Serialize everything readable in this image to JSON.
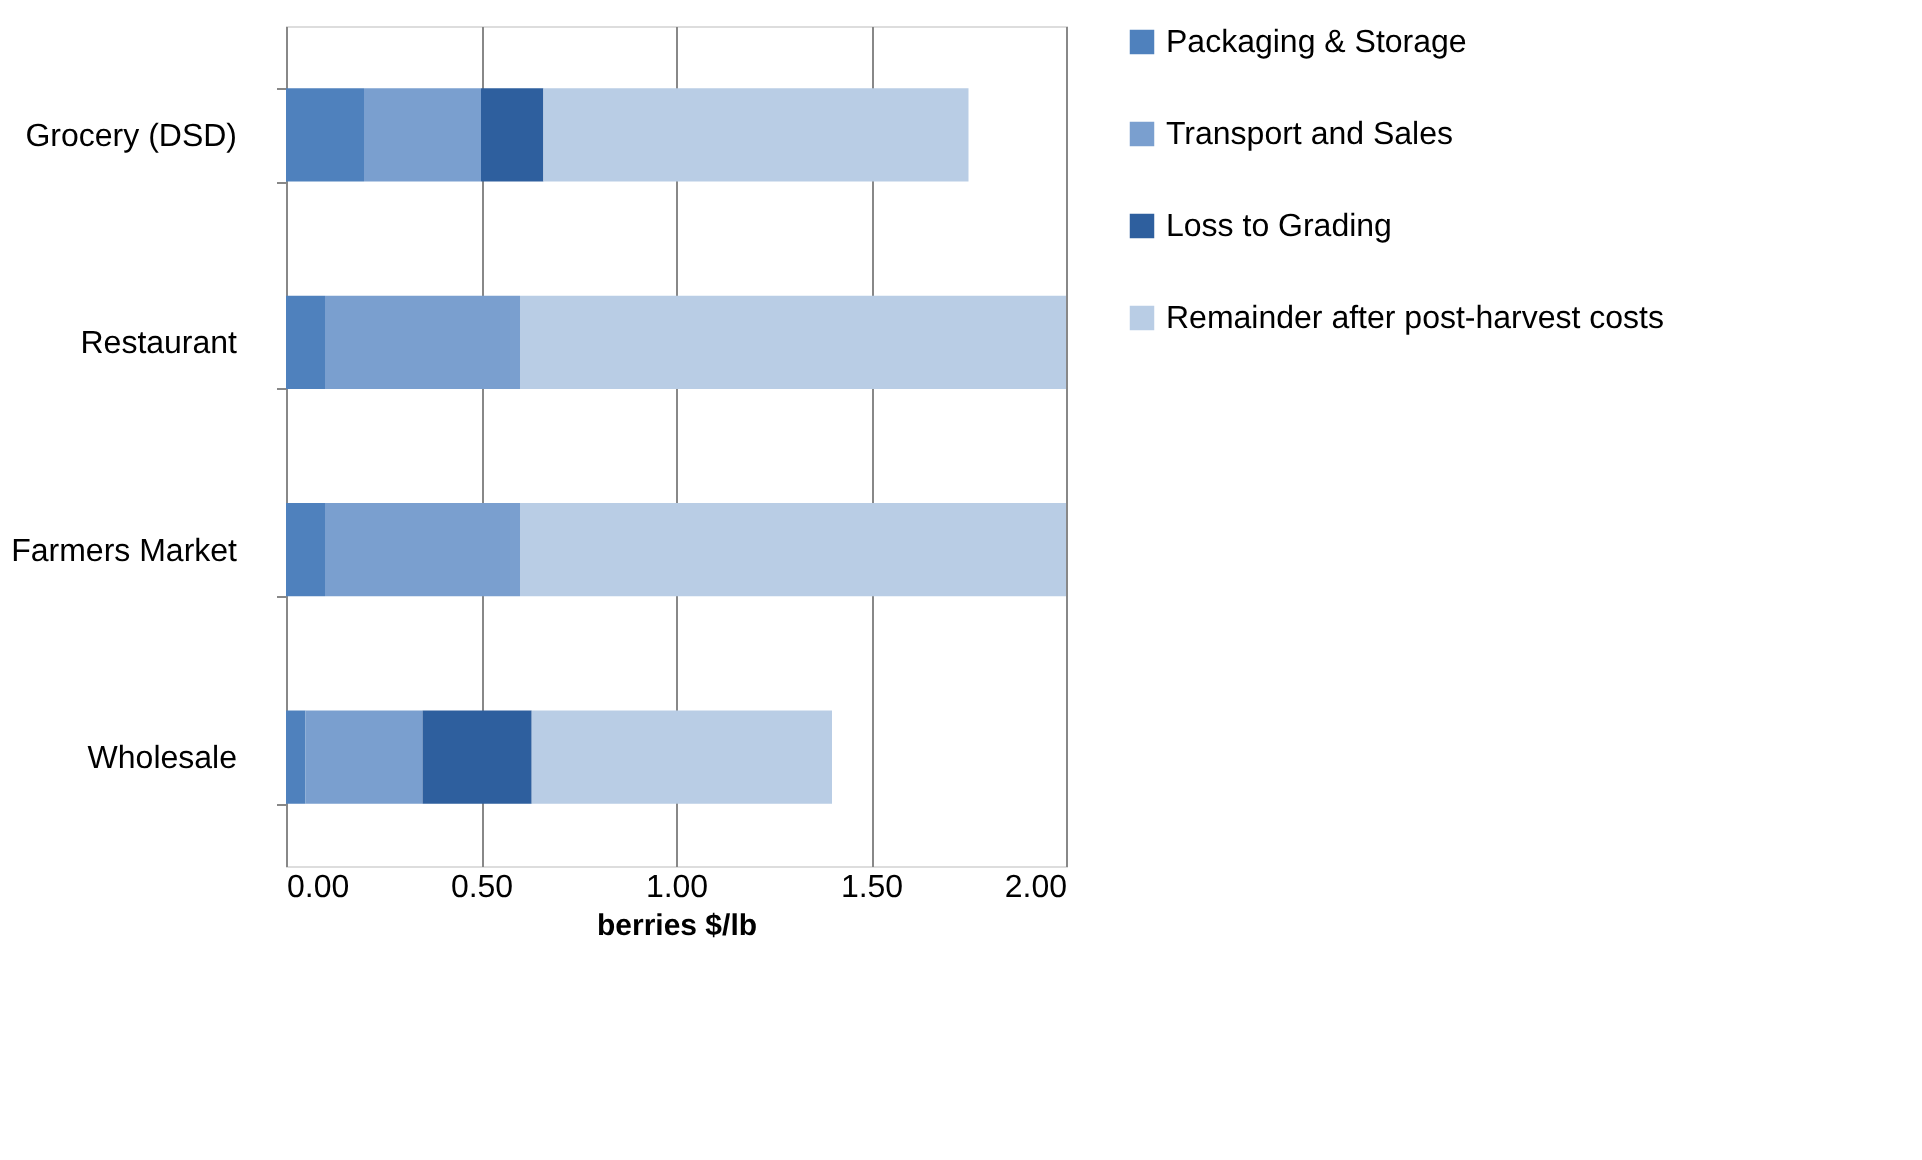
{
  "chart_data": {
    "type": "bar",
    "orientation": "horizontal",
    "stacked": true,
    "categories": [
      "Grocery (DSD)",
      "Restaurant",
      "Farmers Market",
      "Wholesale"
    ],
    "series": [
      {
        "name": "Packaging & Storage",
        "color": "#4f81bd",
        "values": [
          0.2,
          0.1,
          0.1,
          0.05
        ]
      },
      {
        "name": "Transport and Sales",
        "color": "#7a9fcf",
        "values": [
          0.3,
          0.5,
          0.5,
          0.3
        ]
      },
      {
        "name": "Loss to Grading",
        "color": "#2e5f9e",
        "values": [
          0.16,
          null,
          null,
          0.28
        ]
      },
      {
        "name": "Remainder after post-harvest costs",
        "color": "#b9cde5",
        "values": [
          1.09,
          1.4,
          1.4,
          0.77
        ]
      }
    ],
    "xlabel": "berries $/lb",
    "xlim": [
      0,
      2
    ],
    "xticks": [
      {
        "value": 0,
        "label": "0.00"
      },
      {
        "value": 0.5,
        "label": "0.50"
      },
      {
        "value": 1,
        "label": "1.00"
      },
      {
        "value": 1.5,
        "label": "1.50"
      },
      {
        "value": 2,
        "label": "2.00"
      }
    ],
    "grid": "x",
    "legend": "right"
  }
}
